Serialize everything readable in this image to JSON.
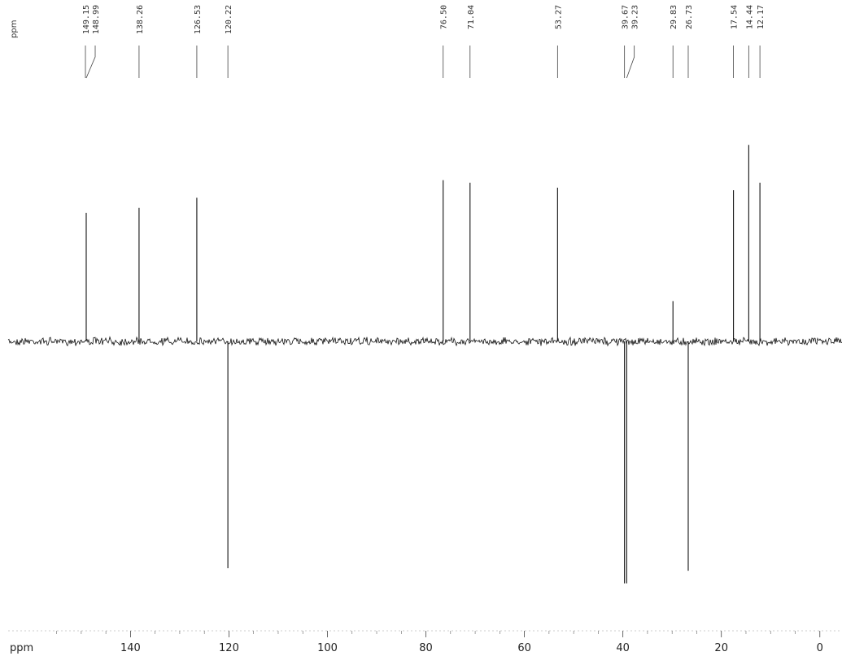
{
  "chart_data": {
    "type": "line",
    "xlabel": "ppm",
    "top_unit_label": "ppm",
    "x_reversed": true,
    "xlim": [
      -4.5,
      166.5
    ],
    "ylim": [
      -1.0,
      0.95
    ],
    "x_ticks": [
      {
        "value": 140,
        "label": "140"
      },
      {
        "value": 120,
        "label": "120"
      },
      {
        "value": 100,
        "label": "100"
      },
      {
        "value": 80,
        "label": "80"
      },
      {
        "value": 60,
        "label": "60"
      },
      {
        "value": 40,
        "label": "40"
      },
      {
        "value": 20,
        "label": "20"
      },
      {
        "value": 0,
        "label": "0"
      }
    ],
    "peaks": [
      {
        "shift": 149.15,
        "label": "149.15",
        "intensity": 0.0
      },
      {
        "shift": 148.99,
        "label": "148.99",
        "intensity": 0.51
      },
      {
        "shift": 138.26,
        "label": "138.26",
        "intensity": 0.53
      },
      {
        "shift": 126.53,
        "label": "126.53",
        "intensity": 0.57
      },
      {
        "shift": 120.22,
        "label": "120.22",
        "intensity": -0.9
      },
      {
        "shift": 76.5,
        "label": "76.50",
        "intensity": 0.64
      },
      {
        "shift": 71.04,
        "label": "71.04",
        "intensity": 0.63
      },
      {
        "shift": 53.27,
        "label": "53.27",
        "intensity": 0.61
      },
      {
        "shift": 39.67,
        "label": "39.67",
        "intensity": -0.96
      },
      {
        "shift": 39.23,
        "label": "39.23",
        "intensity": -0.96
      },
      {
        "shift": 29.83,
        "label": "29.83",
        "intensity": 0.16
      },
      {
        "shift": 26.73,
        "label": "26.73",
        "intensity": -0.91
      },
      {
        "shift": 17.54,
        "label": "17.54",
        "intensity": 0.6
      },
      {
        "shift": 14.44,
        "label": "14.44",
        "intensity": 0.78
      },
      {
        "shift": 12.17,
        "label": "12.17",
        "intensity": 0.63
      }
    ]
  }
}
